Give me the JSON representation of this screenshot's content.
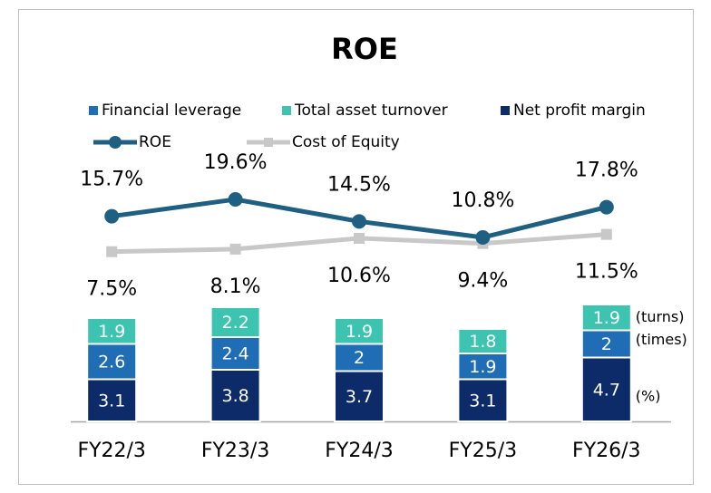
{
  "chart_data": {
    "type": "bar",
    "title": "ROE",
    "categories": [
      "FY22/3",
      "FY23/3",
      "FY24/3",
      "FY25/3",
      "FY26/3"
    ],
    "series": [
      {
        "name": "Financial leverage",
        "type": "bar",
        "color": "#1f6db5",
        "values": [
          2.6,
          2.4,
          2.0,
          1.9,
          2.0
        ]
      },
      {
        "name": "Total asset turnover",
        "type": "bar",
        "color": "#3cc4b0",
        "values": [
          1.9,
          2.2,
          1.9,
          1.8,
          1.9
        ]
      },
      {
        "name": "Net profit margin",
        "type": "bar",
        "color": "#0c2b68",
        "values": [
          3.1,
          3.8,
          3.7,
          3.1,
          4.7
        ]
      },
      {
        "name": "ROE",
        "type": "line",
        "color": "#1f5f82",
        "values": [
          15.7,
          19.6,
          14.5,
          10.8,
          17.8
        ],
        "value_labels": [
          "15.7%",
          "19.6%",
          "14.5%",
          "10.8%",
          "17.8%"
        ]
      },
      {
        "name": "Cost of Equity",
        "type": "line",
        "color": "#c8c8c8",
        "values": [
          7.5,
          8.1,
          10.6,
          9.4,
          11.5
        ],
        "value_labels": [
          "7.5%",
          "8.1%",
          "10.6%",
          "9.4%",
          "11.5%"
        ]
      }
    ],
    "annotations": [
      "(turns)",
      "(times)",
      "(%)"
    ]
  }
}
